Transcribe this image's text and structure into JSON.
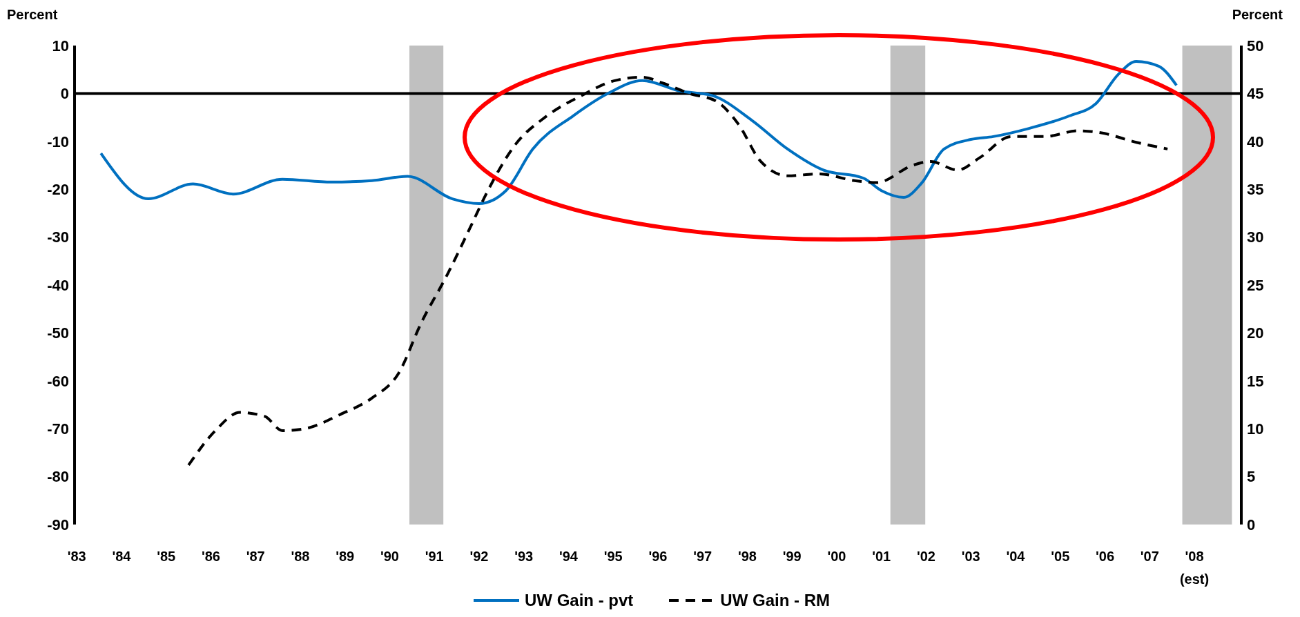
{
  "chart_data": {
    "type": "line",
    "ylabel": "Percent",
    "y2label": "Percent",
    "xlim": [
      1982.95,
      2009.05
    ],
    "xticks": [
      {
        "value": 1983,
        "label": "'83"
      },
      {
        "value": 1984,
        "label": "'84"
      },
      {
        "value": 1985,
        "label": "'85"
      },
      {
        "value": 1986,
        "label": "'86"
      },
      {
        "value": 1987,
        "label": "'87"
      },
      {
        "value": 1988,
        "label": "'88"
      },
      {
        "value": 1989,
        "label": "'89"
      },
      {
        "value": 1990,
        "label": "'90"
      },
      {
        "value": 1991,
        "label": "'91"
      },
      {
        "value": 1992,
        "label": "'92"
      },
      {
        "value": 1993,
        "label": "'93"
      },
      {
        "value": 1994,
        "label": "'94"
      },
      {
        "value": 1995,
        "label": "'95"
      },
      {
        "value": 1996,
        "label": "'96"
      },
      {
        "value": 1997,
        "label": "'97"
      },
      {
        "value": 1998,
        "label": "'98"
      },
      {
        "value": 1999,
        "label": "'99"
      },
      {
        "value": 2000,
        "label": "'00"
      },
      {
        "value": 2001,
        "label": "'01"
      },
      {
        "value": 2002,
        "label": "'02"
      },
      {
        "value": 2003,
        "label": "'03"
      },
      {
        "value": 2004,
        "label": "'04"
      },
      {
        "value": 2005,
        "label": "'05"
      },
      {
        "value": 2006,
        "label": "'06"
      },
      {
        "value": 2007,
        "label": "'07"
      },
      {
        "value": 2008,
        "label": "'08"
      }
    ],
    "annotations": [
      "(est)"
    ],
    "ylim": [
      -90,
      10
    ],
    "yticks": [
      -90,
      -80,
      -70,
      -60,
      -50,
      -40,
      -30,
      -20,
      -10,
      0,
      10
    ],
    "y2lim": [
      0,
      50
    ],
    "y2ticks": [
      0,
      5,
      10,
      15,
      20,
      25,
      30,
      35,
      40,
      45,
      50
    ],
    "grid": false,
    "legend": "bottom",
    "series": [
      {
        "name": "UW Gain - pvt",
        "color": "#0070c0",
        "line_style": "solid",
        "x": [
          1983.54,
          1984.6,
          1985.6,
          1986.5,
          1987.6,
          1988.7,
          1989.6,
          1990.4,
          1991.4,
          1992.0,
          1992.6,
          1993.2,
          1994.1,
          1994.9,
          1995.65,
          1996.5,
          1997.2,
          1998.1,
          1998.9,
          1999.7,
          2000.6,
          2001.0,
          2001.5,
          2001.9,
          2002.4,
          2003.0,
          2003.5,
          2004.3,
          2005.2,
          2005.8,
          2006.3,
          2006.7,
          2007.2,
          2007.6
        ],
        "values": [
          -12.5,
          -22,
          -18.9,
          -21,
          -17.9,
          -18.5,
          -18.2,
          -17.3,
          -22,
          -23,
          -20.3,
          -11.6,
          -4.7,
          0.1,
          2.7,
          0.5,
          -0.4,
          -5.6,
          -11.6,
          -16,
          -17.7,
          -20.3,
          -21.7,
          -18.7,
          -11.6,
          -9.6,
          -9,
          -7.3,
          -4.7,
          -2.1,
          4,
          6.7,
          5.7,
          1.7
        ]
      },
      {
        "name": "UW Gain - RM",
        "color": "#000000",
        "line_style": "dashed",
        "axis": "y2",
        "x": [
          1985.5,
          1986.1,
          1986.65,
          1987.2,
          1987.6,
          1988.1,
          1988.9,
          1989.6,
          1990.2,
          1990.7,
          1991.3,
          1991.8,
          1992.2,
          1992.8,
          1993.5,
          1994.3,
          1995.0,
          1995.65,
          1996.1,
          1996.7,
          1997.3,
          1997.8,
          1998.3,
          1998.9,
          1999.6,
          2000.4,
          2000.9,
          2001.7,
          2002.1,
          2002.7,
          2003.2,
          2003.9,
          2004.65,
          2005.4,
          2005.9,
          2006.7,
          2007.4
        ],
        "values": [
          6.2,
          9.8,
          11.7,
          11.3,
          9.8,
          10,
          11.5,
          13.2,
          15.8,
          21,
          26.2,
          31,
          34.9,
          39.6,
          42.6,
          44.8,
          46.3,
          46.7,
          46.1,
          45,
          44.2,
          41.8,
          37.9,
          36.4,
          36.6,
          35.9,
          35.7,
          37.5,
          37.9,
          37,
          38.3,
          40.5,
          40.5,
          41.1,
          40.9,
          39.9,
          39.2
        ]
      }
    ],
    "bands": [
      {
        "axis": "x",
        "from": 1990.44,
        "to": 1991.2,
        "color": "#c0c0c0"
      },
      {
        "axis": "x",
        "from": 2001.2,
        "to": 2001.98,
        "color": "#c0c0c0"
      },
      {
        "axis": "x",
        "from": 2007.73,
        "to": 2008.84,
        "color": "#c0c0c0"
      }
    ],
    "ref_lines": [
      {
        "axis": "y",
        "value": 0,
        "color": "#000000",
        "line_style": "solid"
      }
    ]
  }
}
